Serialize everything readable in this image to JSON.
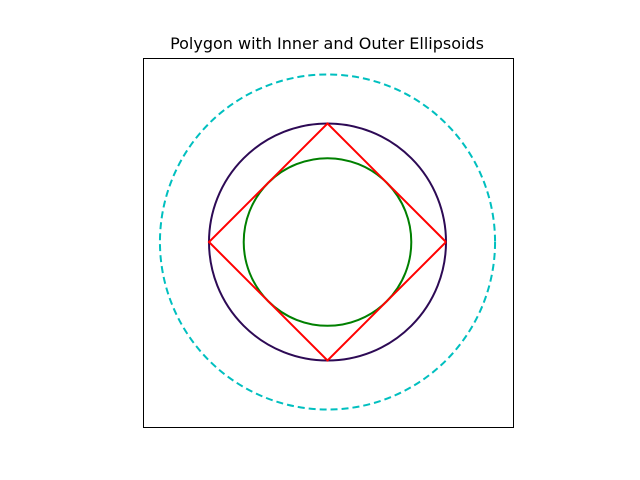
{
  "chart_data": {
    "type": "line",
    "title": "Polygon with Inner and Outer Ellipsoids",
    "xlabel": "",
    "ylabel": "",
    "xlim": [
      -1.55,
      1.55
    ],
    "ylim": [
      -1.55,
      1.55
    ],
    "axes_visible": false,
    "aspect": "equal",
    "grid": false,
    "legend": "none",
    "series": [
      {
        "kind": "polygon",
        "color": "#ff0000",
        "linestyle": "solid",
        "vertices": [
          [
            1,
            0
          ],
          [
            0,
            1
          ],
          [
            -1,
            0
          ],
          [
            0,
            -1
          ],
          [
            1,
            0
          ]
        ]
      },
      {
        "kind": "circle",
        "color": "#008000",
        "linestyle": "solid",
        "center": [
          0,
          0
        ],
        "radius": 0.7071
      },
      {
        "kind": "circle",
        "color": "#2d0a55",
        "linestyle": "solid",
        "center": [
          0,
          0
        ],
        "radius": 1.0
      },
      {
        "kind": "circle",
        "color": "#00bfbf",
        "linestyle": "dashed",
        "center": [
          0,
          0
        ],
        "radius": 1.414
      }
    ]
  }
}
